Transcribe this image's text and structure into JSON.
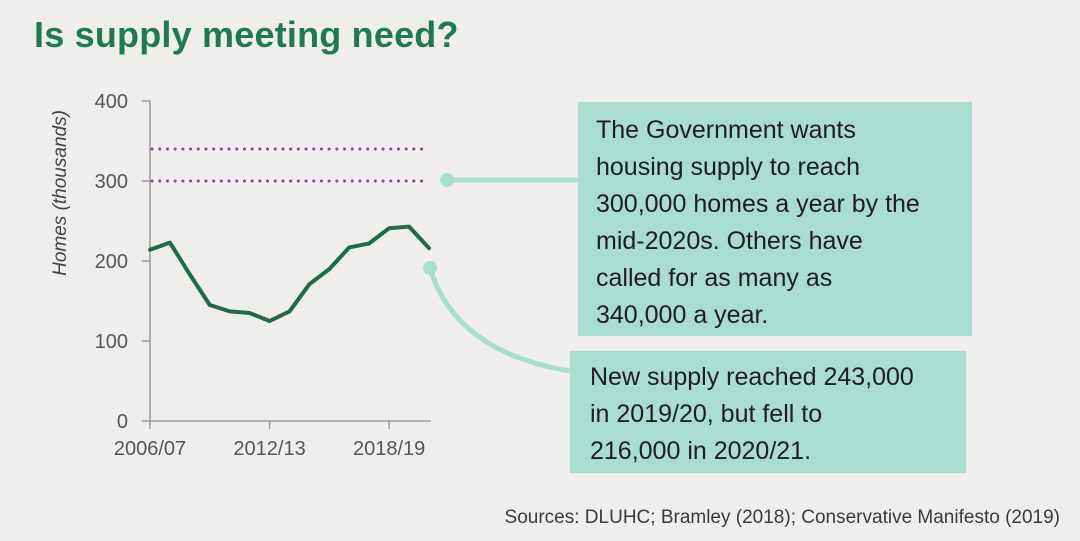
{
  "title": "Is supply meeting need?",
  "source": "Sources: DLUHC; Bramley (2018); Conservative Manifesto (2019)",
  "colors": {
    "title": "#1f7a4f",
    "line": "#1f6b47",
    "target": "#8a3d9e",
    "callout": "#a9ddd0",
    "connector": "#a9ddd0",
    "axis": "#9a9a9a",
    "background": "#f0eeed"
  },
  "callouts": [
    {
      "text": "The Government wants\nhousing supply to reach\n300,000 homes a year by the\nmid-2020s. Others have\ncalled for as many as\n340,000 a year."
    },
    {
      "text": "New supply reached 243,000\nin 2019/20, but fell to\n216,000 in 2020/21."
    }
  ],
  "chart_data": {
    "type": "line",
    "title": "",
    "xlabel": "",
    "ylabel": "Homes (thousands)",
    "ylim": [
      0,
      400
    ],
    "yticks": [
      0,
      100,
      200,
      300,
      400
    ],
    "xtick_labels": [
      "2006/07",
      "2012/13",
      "2018/19"
    ],
    "x": [
      "2006/07",
      "2007/08",
      "2008/09",
      "2009/10",
      "2010/11",
      "2011/12",
      "2012/13",
      "2013/14",
      "2014/15",
      "2015/16",
      "2016/17",
      "2017/18",
      "2018/19",
      "2019/20",
      "2020/21"
    ],
    "series": [
      {
        "values": [
          214,
          223,
          183,
          145,
          137,
          135,
          125,
          137,
          171,
          190,
          217,
          222,
          241,
          243,
          216
        ]
      }
    ],
    "reference_lines": [
      {
        "value": 340
      },
      {
        "value": 300
      }
    ],
    "grid": false
  }
}
